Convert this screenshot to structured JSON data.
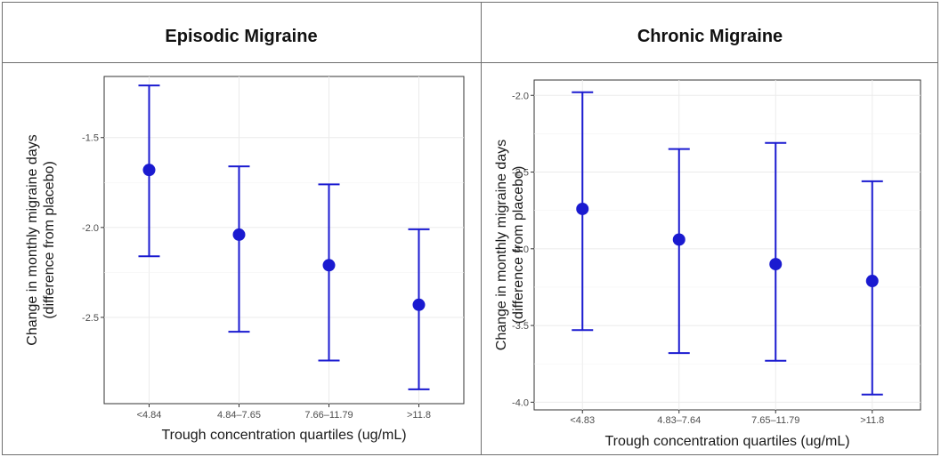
{
  "chart_data": [
    {
      "type": "scatter",
      "title": "Episodic Migraine",
      "ylabel_line1": "Change in monthly migraine days",
      "ylabel_line2": "(difference from placebo)",
      "xlabel": "Trough concentration quartiles (ug/mL)",
      "categories": [
        "<4.84",
        "4.84–7.65",
        "7.66–11.79",
        ">11.8"
      ],
      "values": [
        -1.68,
        -2.04,
        -2.21,
        -2.43
      ],
      "lower": [
        -2.16,
        -2.58,
        -2.74,
        -2.9
      ],
      "upper": [
        -1.21,
        -1.66,
        -1.76,
        -2.01
      ],
      "ylim": [
        -2.98,
        -1.16
      ],
      "yticks": [
        -1.5,
        -2.0,
        -2.5
      ],
      "ytick_labels": [
        "-1.5",
        "-2.0",
        "-2.5"
      ],
      "grid": true,
      "color": "#1a1ad0"
    },
    {
      "type": "scatter",
      "title": "Chronic Migraine",
      "ylabel_line1": "Change in monthly migraine days",
      "ylabel_line2": "(difference from placebo)",
      "xlabel": "Trough concentration quartiles (ug/mL)",
      "categories": [
        "<4.83",
        "4.83–7.64",
        "7.65–11.79",
        ">11.8"
      ],
      "values": [
        -2.74,
        -2.94,
        -3.1,
        -3.21
      ],
      "lower": [
        -3.53,
        -3.68,
        -3.73,
        -3.95
      ],
      "upper": [
        -1.98,
        -2.35,
        -2.31,
        -2.56
      ],
      "ylim": [
        -4.05,
        -1.9
      ],
      "yticks": [
        -2.0,
        -2.5,
        -3.0,
        -3.5,
        -4.0
      ],
      "ytick_labels": [
        "-2.0",
        "-2.5",
        "-3.0",
        "-3.5",
        "-4.0"
      ],
      "grid": true,
      "color": "#1a1ad0"
    }
  ]
}
